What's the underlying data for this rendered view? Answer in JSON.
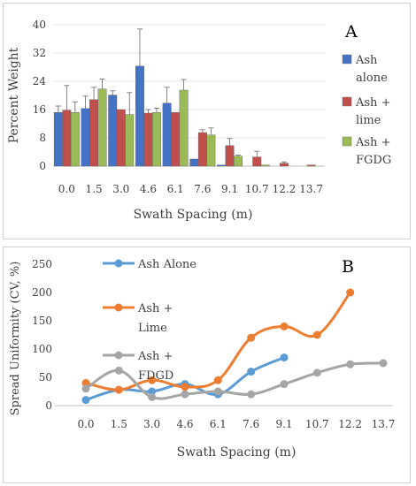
{
  "chart_data": [
    {
      "type": "bar",
      "panel_label": "A",
      "xlabel": "Swath Spacing (m)",
      "ylabel": "Percent Weight",
      "ylim": [
        0,
        40
      ],
      "yticks": [
        0,
        8,
        16,
        24,
        32,
        40
      ],
      "categories": [
        "0.0",
        "1.5",
        "3.0",
        "4.6",
        "6.1",
        "7.6",
        "9.1",
        "10.7",
        "12.2",
        "13.7"
      ],
      "series": [
        {
          "name": "Ash alone",
          "color": "#4472c4",
          "values": [
            15.2,
            16.3,
            20.1,
            28.3,
            17.8,
            2.0,
            0.3,
            0,
            0,
            0
          ],
          "errors": [
            1.8,
            3.5,
            1.2,
            10.5,
            4.5,
            0,
            0,
            0,
            0,
            0
          ]
        },
        {
          "name": "Ash + lime",
          "color": "#c0504d",
          "values": [
            15.8,
            18.8,
            16.0,
            15.0,
            15.2,
            9.5,
            5.8,
            2.6,
            0.8,
            0.3
          ],
          "errors": [
            7.0,
            3.5,
            0,
            1.0,
            0,
            0.8,
            2.0,
            1.6,
            0.4,
            0
          ]
        },
        {
          "name": "Ash + FGDG",
          "color": "#9bbb59",
          "values": [
            15.2,
            21.8,
            14.6,
            15.2,
            21.5,
            8.8,
            2.8,
            0.3,
            0,
            0
          ],
          "errors": [
            3.0,
            2.8,
            6.2,
            1.2,
            3.0,
            2.0,
            0.3,
            0,
            0,
            0
          ]
        }
      ]
    },
    {
      "type": "line",
      "panel_label": "B",
      "xlabel": "Swath Spacing (m)",
      "ylabel": "Spread Uniformity (CV, %)",
      "ylim": [
        0,
        250
      ],
      "yticks": [
        0,
        50,
        100,
        150,
        200,
        250
      ],
      "x": [
        "0.0",
        "1.5",
        "3.0",
        "4.6",
        "6.1",
        "7.6",
        "9.1",
        "10.7",
        "12.2",
        "13.7"
      ],
      "series": [
        {
          "name": "Ash Alone",
          "color": "#5b9bd5",
          "values": [
            10,
            28,
            25,
            38,
            20,
            60,
            85,
            null,
            null,
            null
          ]
        },
        {
          "name": "Ash + Lime",
          "color": "#ed7d31",
          "values": [
            40,
            28,
            45,
            33,
            45,
            120,
            140,
            125,
            200,
            null
          ]
        },
        {
          "name": "Ash + FDGD",
          "color": "#a5a5a5",
          "values": [
            30,
            62,
            15,
            20,
            25,
            20,
            38,
            58,
            73,
            75
          ]
        }
      ]
    }
  ],
  "colors": {
    "axis": "#bfbfbf",
    "text": "#404040"
  }
}
